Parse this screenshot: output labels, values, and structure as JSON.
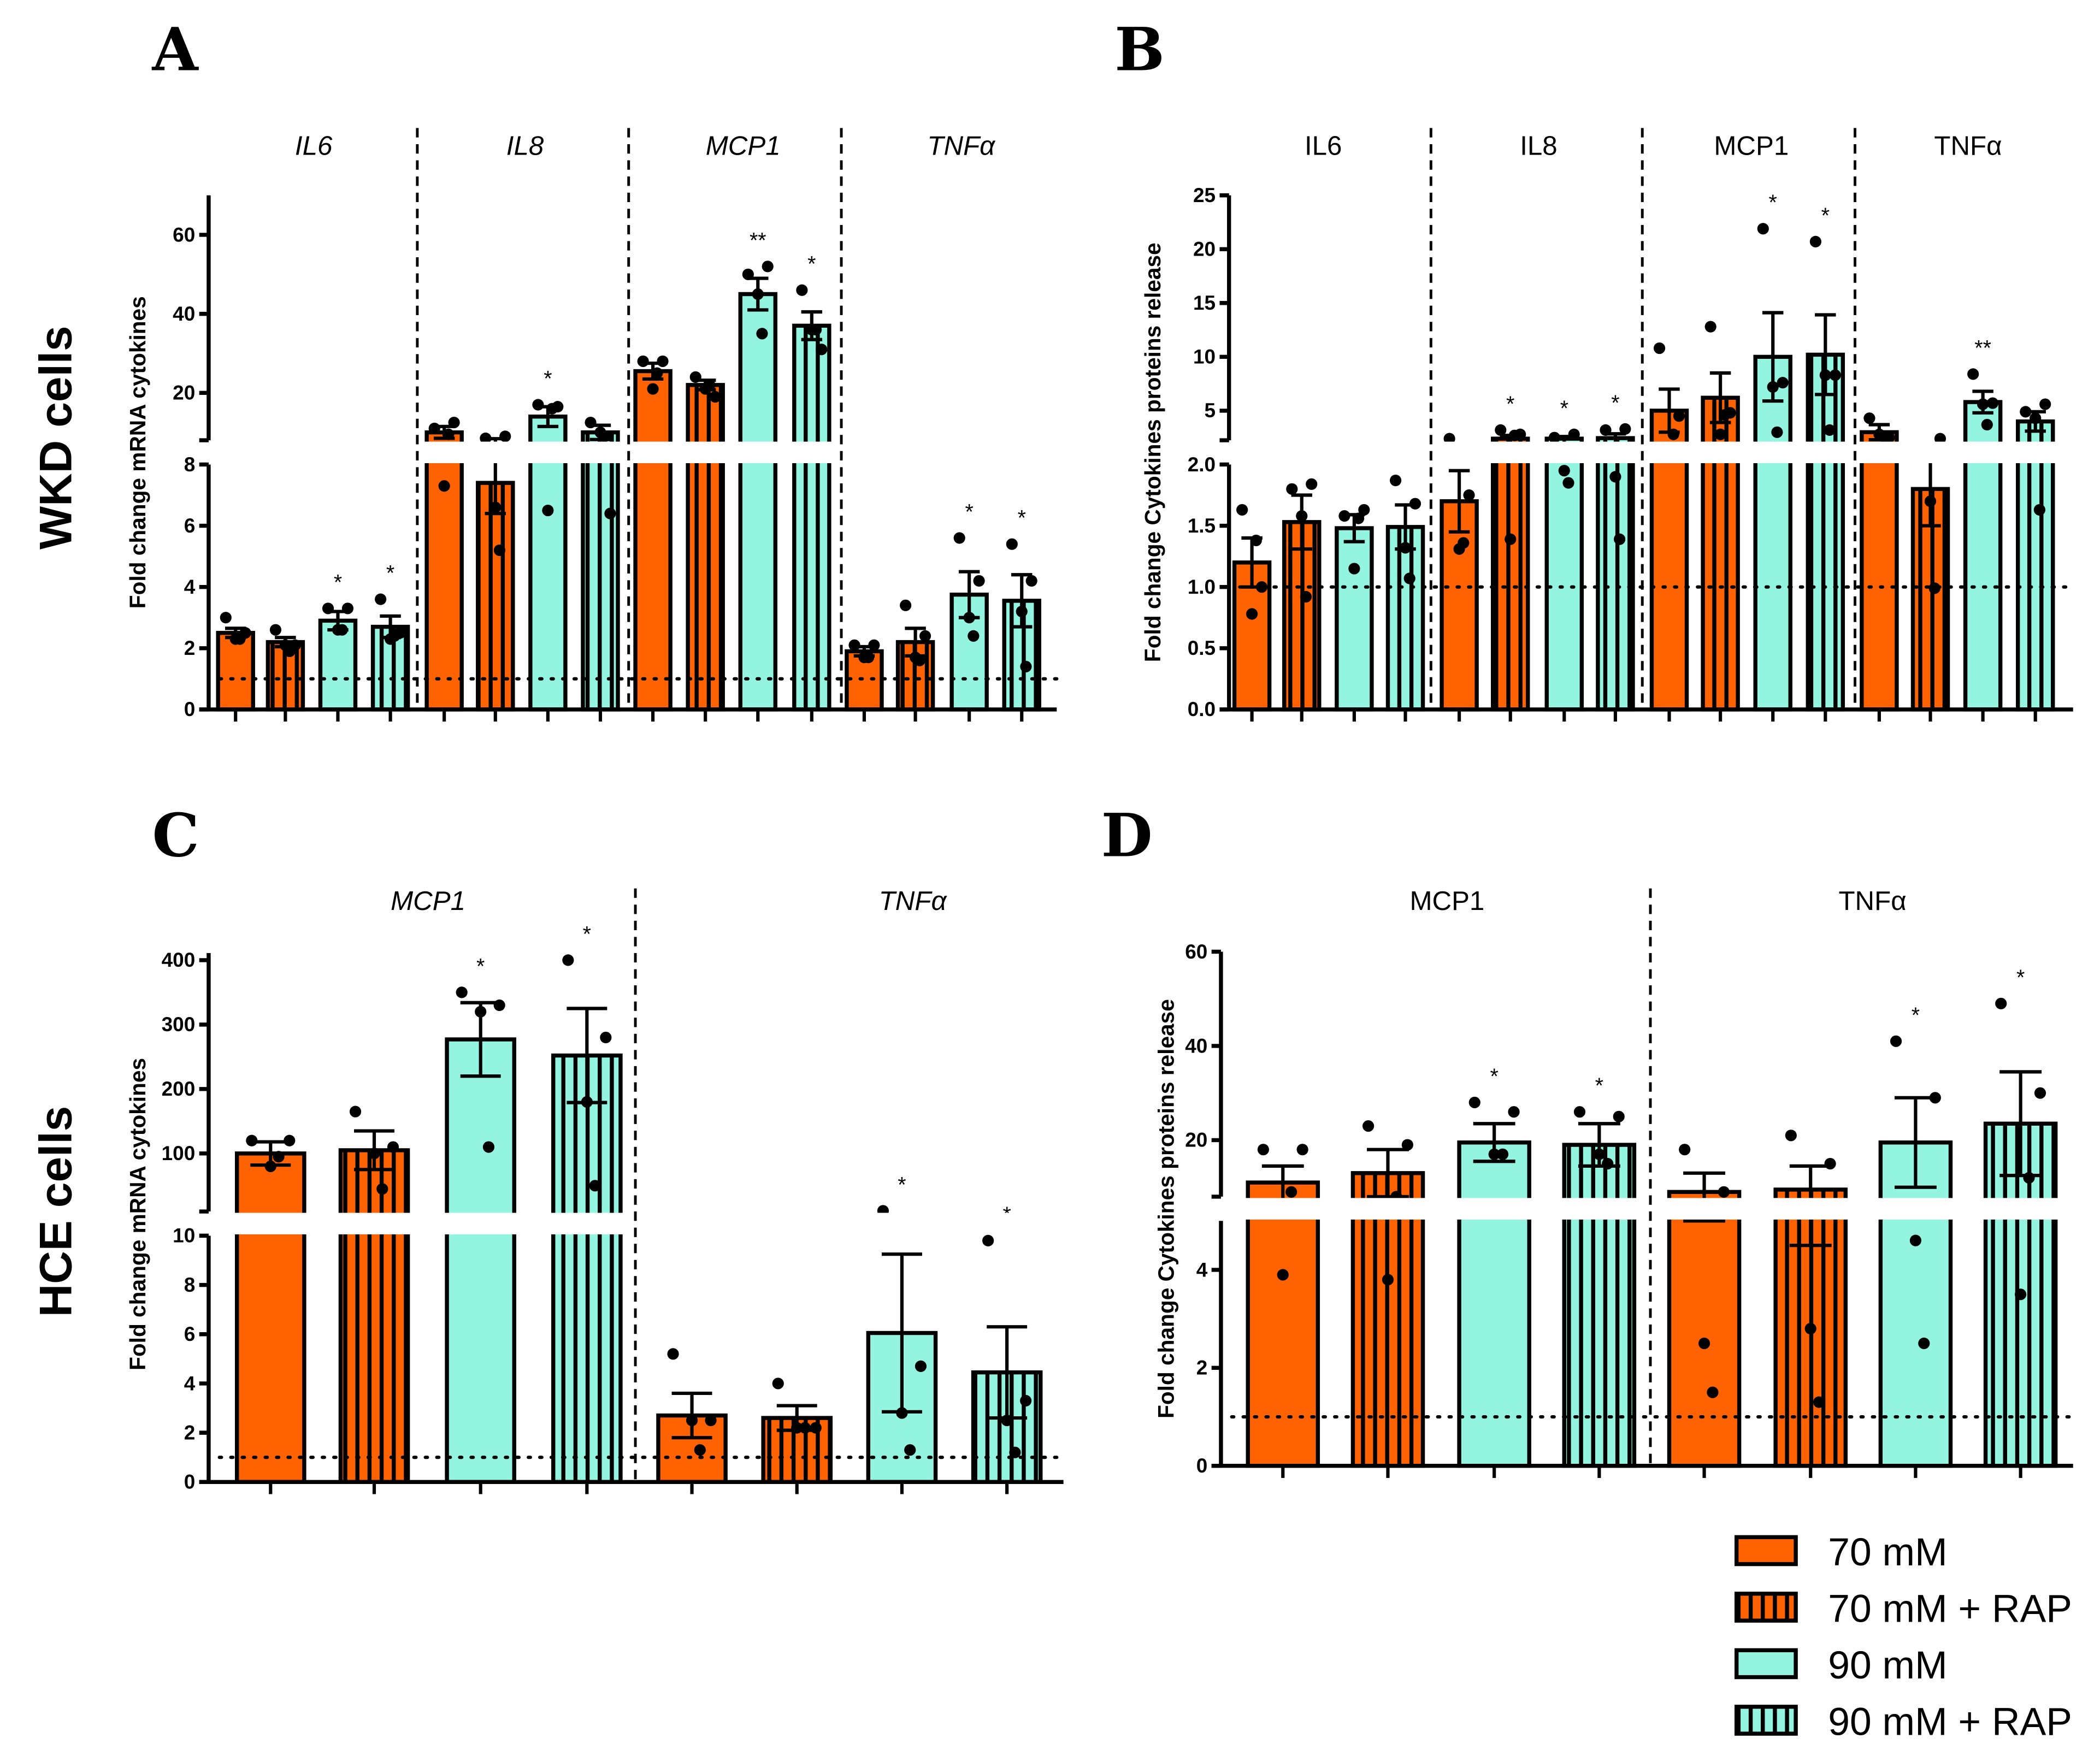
{
  "figure": {
    "row_labels": [
      "WKD cells",
      "HCE cells"
    ],
    "colors": {
      "c70": "#FF6200",
      "c90": "#93F5DF",
      "stroke": "#000000"
    },
    "legend": [
      {
        "label": "70 mM",
        "color": "#FF6200",
        "hatched": false
      },
      {
        "label": "70 mM + RAP",
        "color": "#FF6200",
        "hatched": true
      },
      {
        "label": "90 mM",
        "color": "#93F5DF",
        "hatched": false
      },
      {
        "label": "90 mM + RAP",
        "color": "#93F5DF",
        "hatched": true
      }
    ]
  },
  "chart_data": [
    {
      "panel": "A",
      "type": "bar",
      "ylabel": "Fold change mRNA cytokines",
      "italic_groups": true,
      "groups": [
        "IL6",
        "IL8",
        "MCP1",
        "TNFα"
      ],
      "series": [
        "70 mM",
        "70 mM + RAP",
        "90 mM",
        "90 mM + RAP"
      ],
      "reference_line": 1,
      "y_break": {
        "lower": [
          0,
          8
        ],
        "upper": [
          8,
          70
        ]
      },
      "ticks_lower": [
        0,
        2,
        4,
        6,
        8
      ],
      "ticks_upper": [
        20,
        40,
        60
      ],
      "means": [
        [
          2.5,
          2.2,
          2.9,
          2.7
        ],
        [
          10,
          7.4,
          14,
          10
        ],
        [
          25.5,
          22,
          45,
          37
        ],
        [
          1.9,
          2.2,
          3.75,
          3.55
        ]
      ],
      "sem": [
        [
          0.15,
          0.15,
          0.3,
          0.35
        ],
        [
          1.5,
          1.0,
          2.5,
          1.8
        ],
        [
          2,
          1.2,
          4,
          3.5
        ],
        [
          0.15,
          0.45,
          0.75,
          0.85
        ]
      ],
      "points": [
        [
          [
            3.0,
            2.5,
            2.3,
            2.3
          ],
          [
            2.6,
            2.1,
            2.1,
            1.9
          ],
          [
            3.3,
            3.3,
            2.6,
            2.6
          ],
          [
            3.6,
            2.5,
            2.3,
            2.4
          ]
        ],
        [
          [
            11,
            12.5,
            7.3,
            9.5
          ],
          [
            8.5,
            9,
            6.6,
            5.2
          ],
          [
            17,
            16.5,
            6.5,
            16
          ],
          [
            12.5,
            6.4,
            10,
            9
          ]
        ],
        [
          [
            28,
            28,
            21,
            25
          ],
          [
            24,
            19,
            21,
            22
          ],
          [
            50,
            52,
            45,
            35
          ],
          [
            46,
            31,
            36,
            36
          ]
        ],
        [
          [
            2.1,
            2.1,
            1.7,
            1.7
          ],
          [
            3.4,
            2.4,
            1.7,
            1.6
          ],
          [
            5.6,
            4.2,
            3.0,
            2.4
          ],
          [
            5.4,
            4.2,
            3.2,
            1.4
          ]
        ]
      ],
      "stars": [
        [
          "",
          "",
          "*",
          "*"
        ],
        [
          "",
          "",
          "*",
          ""
        ],
        [
          "",
          "",
          "**",
          "*"
        ],
        [
          "",
          "",
          "*",
          "*"
        ]
      ]
    },
    {
      "panel": "B",
      "type": "bar",
      "ylabel": "Fold change Cytokines proteins release",
      "italic_groups": false,
      "groups": [
        "IL6",
        "IL8",
        "MCP1",
        "TNFα"
      ],
      "series": [
        "70 mM",
        "70 mM + RAP",
        "90 mM",
        "90 mM + RAP"
      ],
      "reference_line": 1,
      "y_break": {
        "lower": [
          0,
          2
        ],
        "upper": [
          2.25,
          25
        ]
      },
      "ticks_lower": [
        "0.0",
        "0.5",
        "1.0",
        "1.5",
        "2.0"
      ],
      "ticks_upper": [
        5,
        10,
        15,
        20,
        25
      ],
      "means": [
        [
          1.2,
          1.53,
          1.48,
          1.49
        ],
        [
          1.7,
          2.4,
          2.4,
          2.45
        ],
        [
          5.0,
          6.2,
          10,
          10.2
        ],
        [
          3.0,
          1.8,
          5.8,
          4.0
        ]
      ],
      "sem": [
        [
          0.2,
          0.22,
          0.11,
          0.18
        ],
        [
          0.25,
          0.3,
          0.2,
          0.4
        ],
        [
          2,
          2.3,
          4.1,
          3.7
        ],
        [
          0.7,
          0.3,
          1.0,
          0.9
        ]
      ],
      "points": [
        [
          [
            1.63,
            1.0,
            0.78,
            1.38
          ],
          [
            1.8,
            1.84,
            1.58,
            0.92
          ],
          [
            1.58,
            1.63,
            1.15,
            1.56
          ],
          [
            1.87,
            1.68,
            1.32,
            1.07
          ]
        ],
        [
          [
            2.4,
            1.75,
            1.31,
            1.36
          ],
          [
            3.2,
            2.8,
            1.39,
            2.7
          ],
          [
            2.5,
            2.8,
            1.95,
            1.85
          ],
          [
            3.2,
            3.3,
            1.9,
            1.39
          ]
        ],
        [
          [
            10.8,
            4.5,
            2.2,
            2.8
          ],
          [
            12.8,
            4.8,
            2.8,
            4.6
          ],
          [
            21.9,
            7.6,
            7.2,
            3.0
          ],
          [
            20.7,
            8.3,
            8.3,
            3.2
          ]
        ],
        [
          [
            4.3,
            2.5,
            2.8,
            2.6
          ],
          [
            2.2,
            2.4,
            1.7,
            0.99
          ],
          [
            8.4,
            5.7,
            5.6,
            3.7
          ],
          [
            4.9,
            5.6,
            4.3,
            1.63
          ]
        ]
      ],
      "stars": [
        [
          "",
          "",
          "",
          ""
        ],
        [
          "",
          "*",
          "*",
          "*"
        ],
        [
          "",
          "",
          "*",
          "*"
        ],
        [
          "",
          "",
          "**",
          ""
        ]
      ]
    },
    {
      "panel": "C",
      "type": "bar",
      "ylabel": "Fold change mRNA cytokines",
      "italic_groups": true,
      "groups": [
        "MCP1",
        "TNFα"
      ],
      "series": [
        "70 mM",
        "70 mM + RAP",
        "90 mM",
        "90 mM + RAP"
      ],
      "reference_line": 1,
      "y_break": {
        "lower": [
          0,
          10
        ],
        "upper": [
          10,
          411
        ]
      },
      "ticks_lower": [
        0,
        2,
        4,
        6,
        8,
        10
      ],
      "ticks_upper": [
        100,
        200,
        300,
        400
      ],
      "means": [
        [
          100,
          105,
          277,
          252
        ],
        [
          2.7,
          2.6,
          6.05,
          4.45
        ]
      ],
      "sem": [
        [
          18,
          30,
          57,
          73
        ],
        [
          0.9,
          0.5,
          3.2,
          1.85
        ]
      ],
      "points": [
        [
          [
            120,
            120,
            80,
            95
          ],
          [
            165,
            110,
            100,
            45
          ],
          [
            350,
            330,
            320,
            110
          ],
          [
            400,
            280,
            180,
            50
          ]
        ],
        [
          [
            5.2,
            2.5,
            2.5,
            1.3
          ],
          [
            4.0,
            2.2,
            2.2,
            2.2
          ],
          [
            11,
            4.7,
            2.8,
            1.3
          ],
          [
            9.8,
            3.3,
            2.5,
            1.2
          ]
        ]
      ],
      "stars": [
        [
          "",
          "",
          "*",
          "*"
        ],
        [
          "",
          "",
          "*",
          "*"
        ]
      ]
    },
    {
      "panel": "D",
      "type": "bar",
      "ylabel": "Fold change Cytokines proteins release",
      "italic_groups": false,
      "groups": [
        "MCP1",
        "TNFα"
      ],
      "series": [
        "70 mM",
        "70 mM + RAP",
        "90 mM",
        "90 mM + RAP"
      ],
      "reference_line": 1,
      "y_break": {
        "lower": [
          0,
          5
        ],
        "upper": [
          8,
          60
        ]
      },
      "ticks_lower": [
        0,
        2,
        4
      ],
      "ticks_upper": [
        20,
        40,
        60
      ],
      "means": [
        [
          11,
          13,
          19.5,
          19
        ],
        [
          9,
          9.5,
          19.5,
          23.5
        ]
      ],
      "sem": [
        [
          3.5,
          5,
          4,
          4.5
        ],
        [
          4,
          5,
          9.5,
          11
        ]
      ],
      "points": [
        [
          [
            18,
            18,
            3.9,
            9
          ],
          [
            23,
            19,
            3.8,
            8
          ],
          [
            28,
            26,
            17,
            17
          ],
          [
            26,
            25,
            17,
            15
          ]
        ],
        [
          [
            18,
            9,
            2.5,
            1.5
          ],
          [
            21,
            15,
            2.8,
            1.3
          ],
          [
            41,
            29,
            4.6,
            2.5
          ],
          [
            49,
            30,
            3.5,
            12
          ]
        ]
      ],
      "stars": [
        [
          "",
          "",
          "*",
          "*"
        ],
        [
          "",
          "",
          "*",
          "*"
        ]
      ]
    }
  ]
}
